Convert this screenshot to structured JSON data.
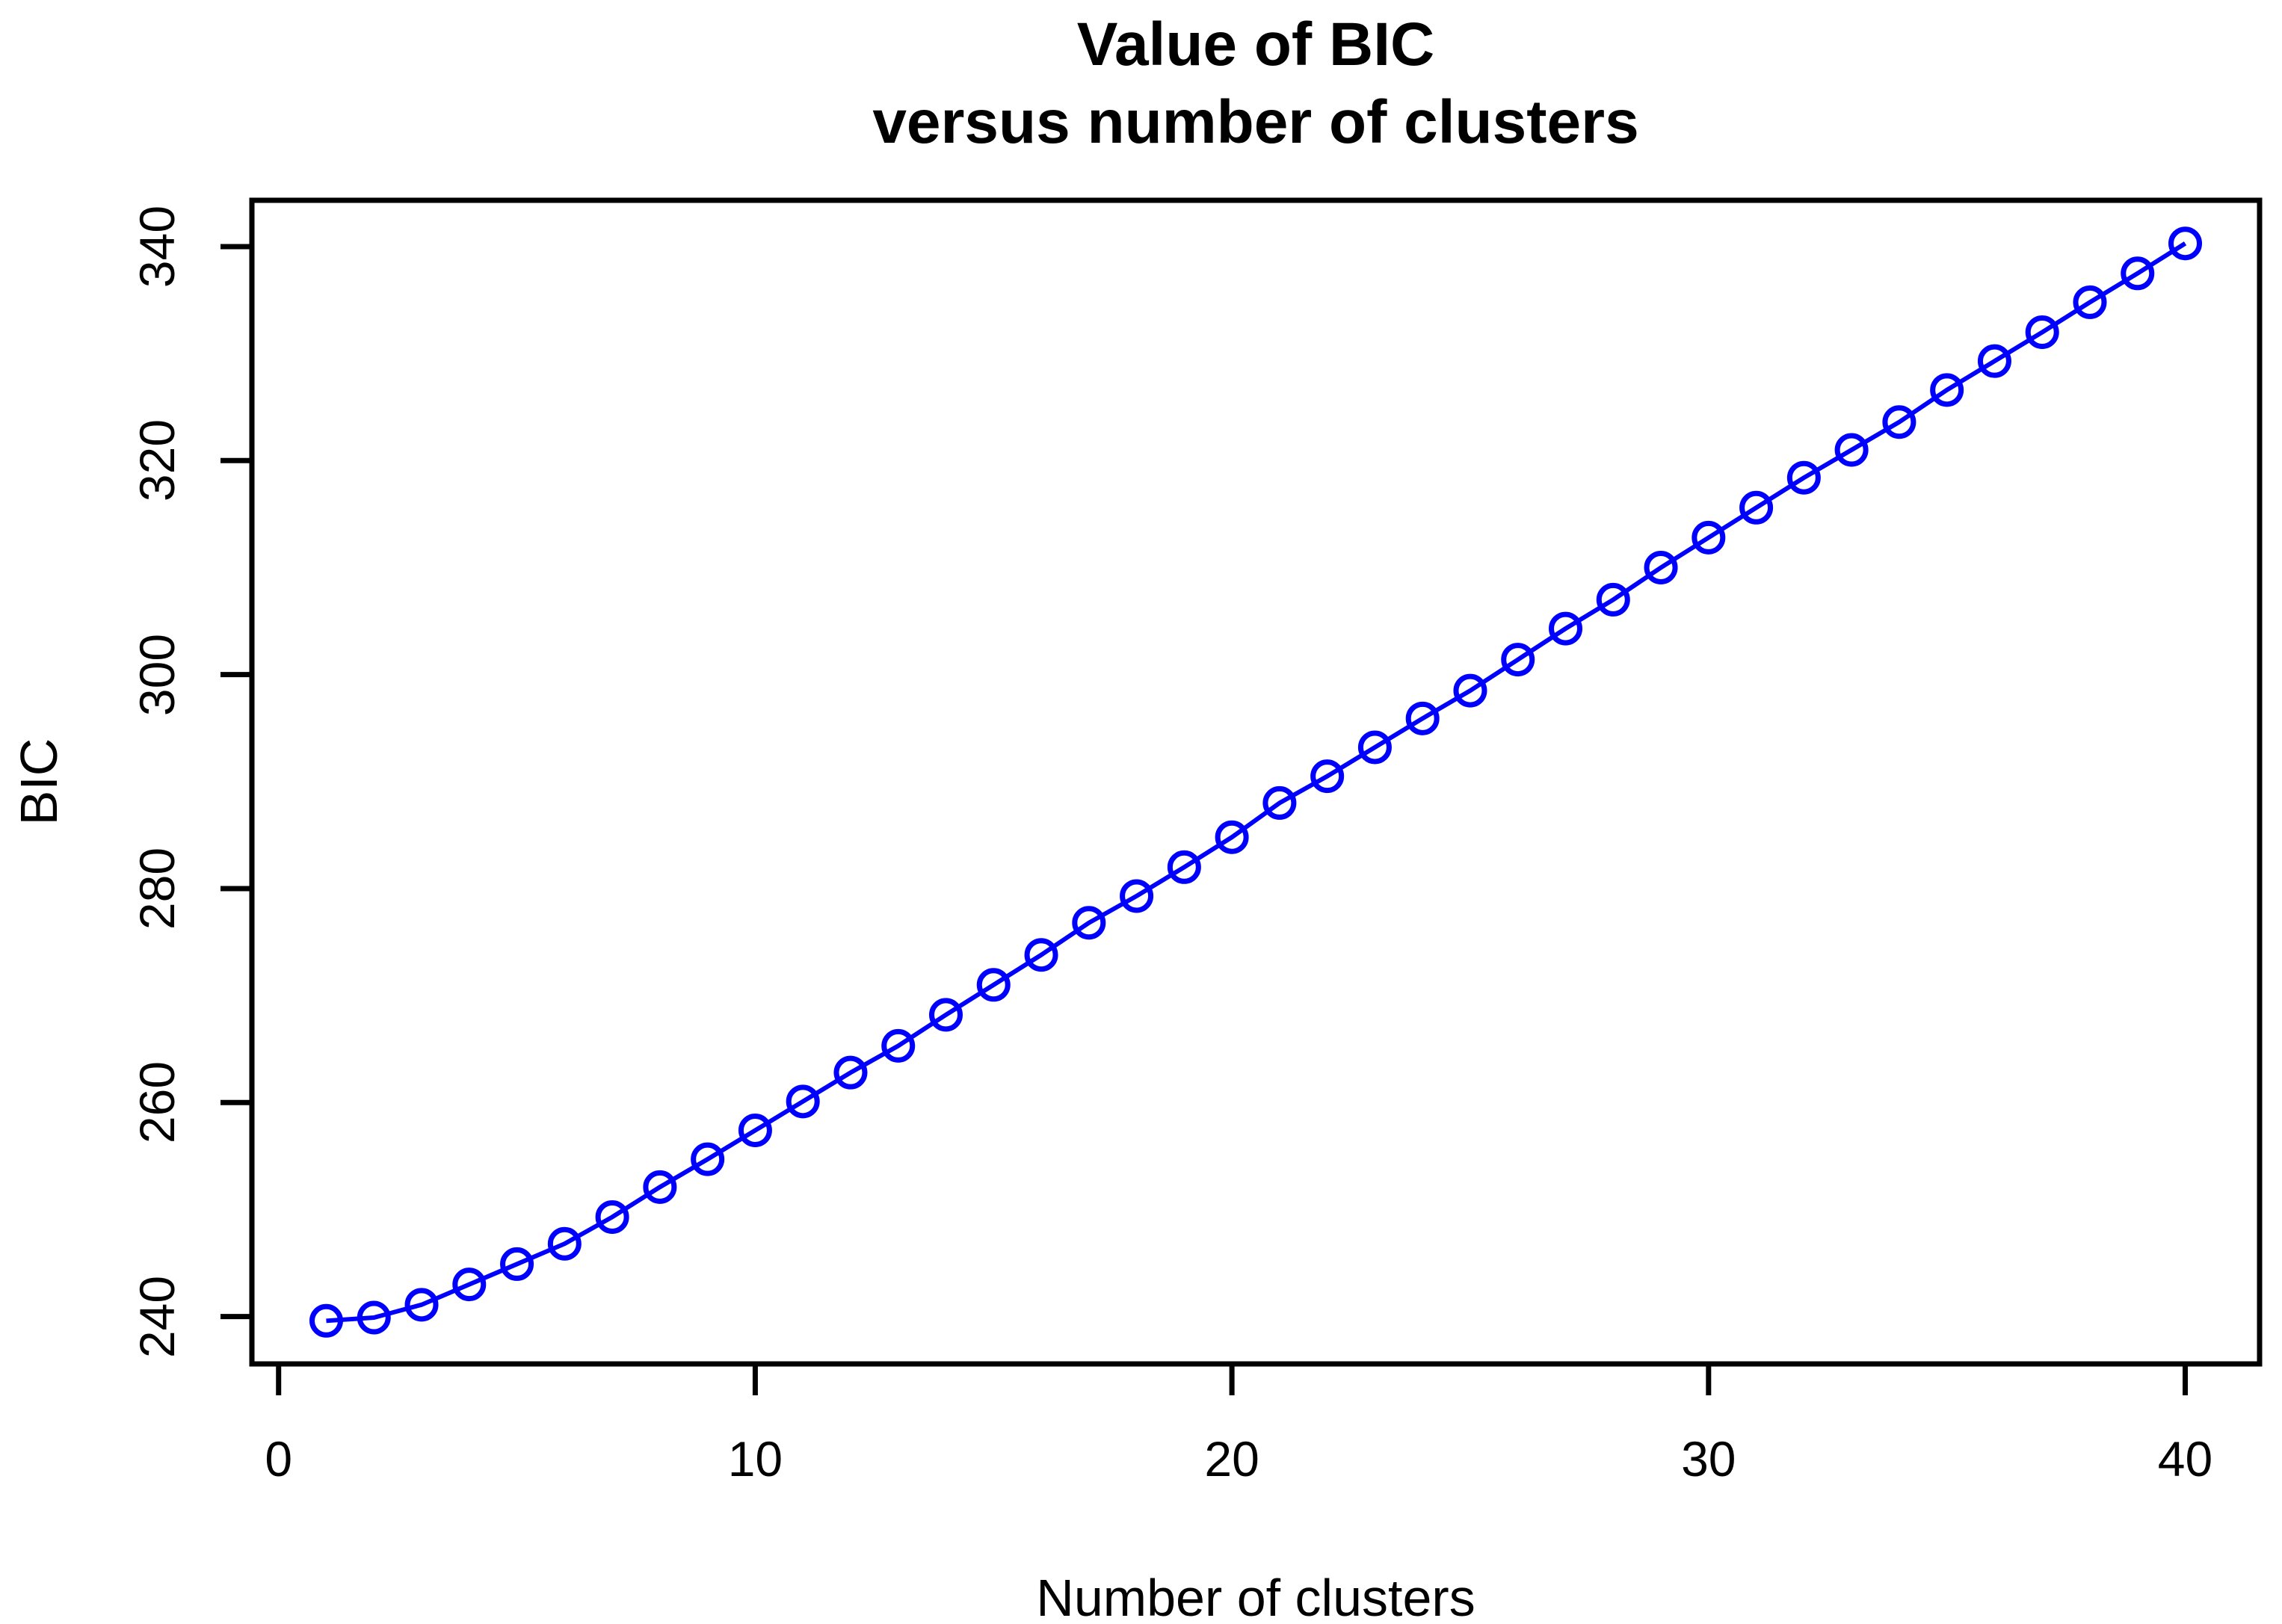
{
  "chart_data": {
    "type": "line",
    "title_line1": "Value of BIC",
    "title_line2": "versus number of clusters",
    "xlabel": "Number of clusters",
    "ylabel": "BIC",
    "x": [
      1,
      2,
      3,
      4,
      5,
      6,
      7,
      8,
      9,
      10,
      11,
      12,
      13,
      14,
      15,
      16,
      17,
      18,
      19,
      20,
      21,
      22,
      23,
      24,
      25,
      26,
      27,
      28,
      29,
      30,
      31,
      32,
      33,
      34,
      35,
      36,
      37,
      38,
      39,
      40
    ],
    "series": [
      {
        "name": "BIC",
        "values": [
          239.6,
          239.9,
          241.1,
          243.0,
          244.9,
          246.8,
          249.3,
          252.1,
          254.7,
          257.4,
          260.1,
          262.8,
          265.3,
          268.2,
          271.0,
          273.8,
          276.8,
          279.3,
          282.0,
          284.8,
          288.0,
          290.5,
          293.2,
          295.9,
          298.5,
          301.4,
          304.3,
          307.0,
          310.0,
          312.8,
          315.6,
          318.4,
          321.0,
          323.6,
          326.6,
          329.3,
          332.0,
          334.8,
          337.5,
          340.3
        ]
      }
    ],
    "x_ticks": [
      0,
      10,
      20,
      30,
      40
    ],
    "y_ticks": [
      240,
      260,
      280,
      300,
      320,
      340
    ],
    "xlim": [
      -0.56,
      41.56
    ],
    "ylim": [
      235.57,
      344.33
    ],
    "grid": "off",
    "legend": "none",
    "marker": "open-circle",
    "line_color": "#0000FF",
    "axis_color": "#000000",
    "background_color": "#FFFFFF"
  }
}
